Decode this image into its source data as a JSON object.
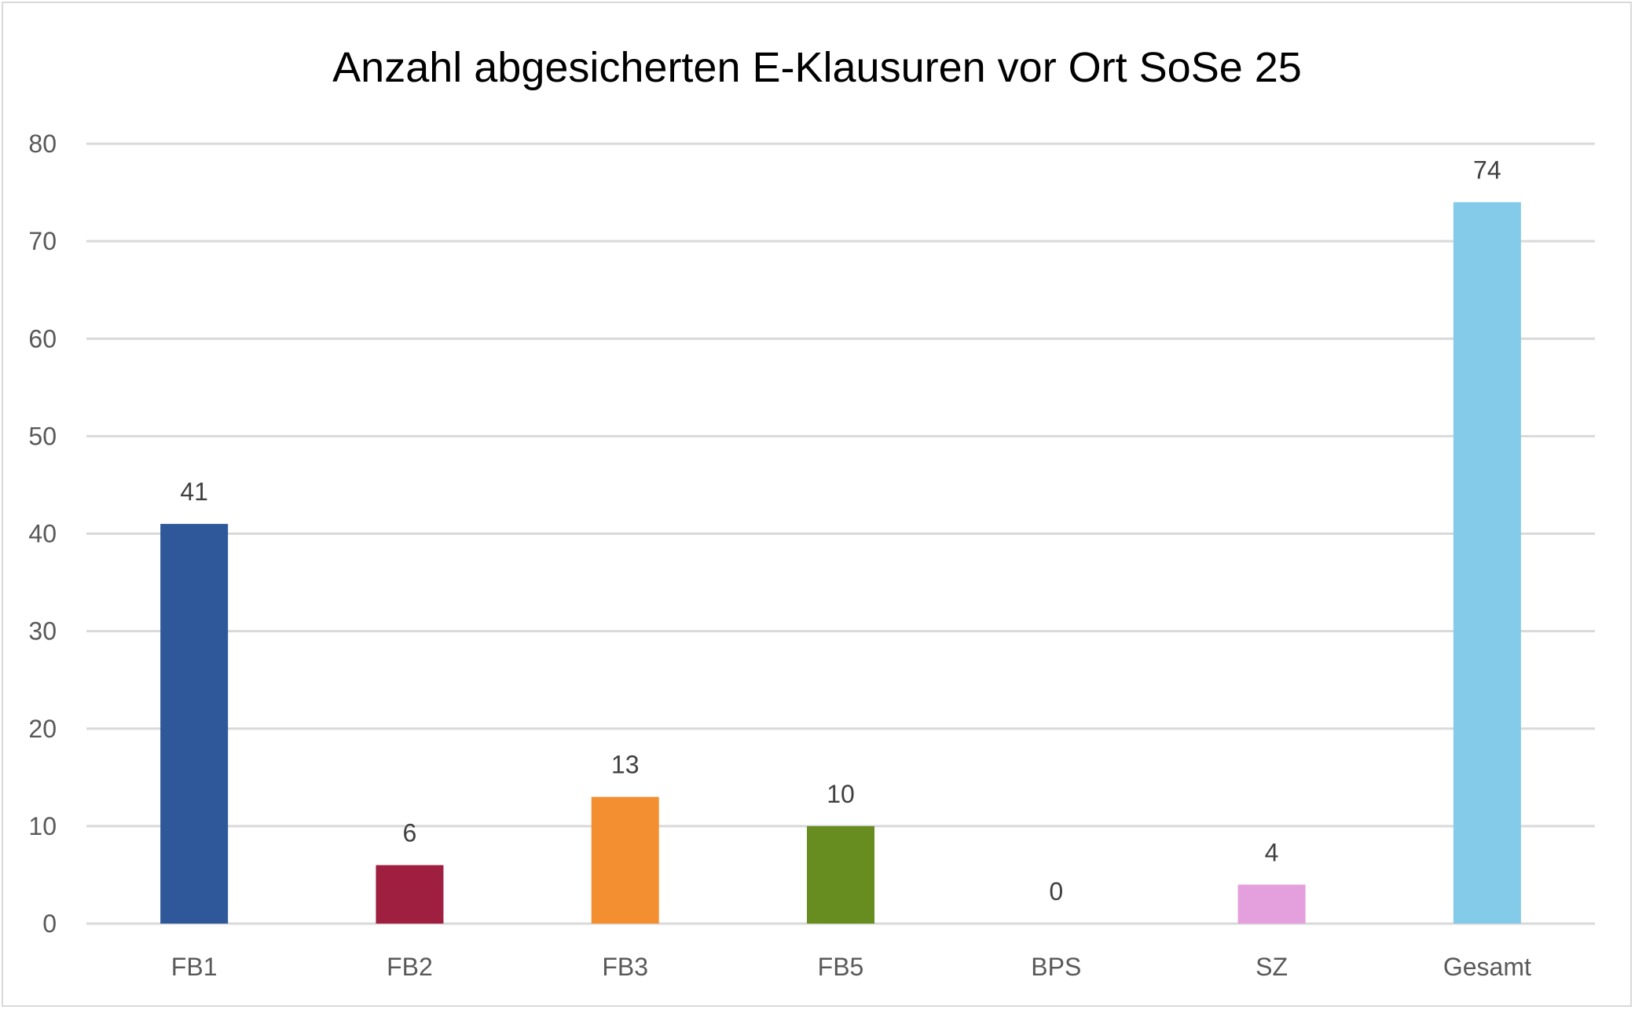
{
  "chart_data": {
    "type": "bar",
    "title": "Anzahl abgesicherten E-Klausuren vor Ort SoSe 25",
    "categories": [
      "FB1",
      "FB2",
      "FB3",
      "FB5",
      "BPS",
      "SZ",
      "Gesamt"
    ],
    "values": [
      41,
      6,
      13,
      10,
      0,
      4,
      74
    ],
    "colors": [
      "#2e5899",
      "#9e1f40",
      "#f48f31",
      "#678c1f",
      "#cccccc",
      "#e49fdd",
      "#84cbea"
    ],
    "data_labels": [
      "41",
      "6",
      "13",
      "10",
      "0",
      "4",
      "74"
    ],
    "yticks": [
      "0",
      "10",
      "20",
      "30",
      "40",
      "50",
      "60",
      "70",
      "80"
    ],
    "ylim": [
      0,
      80
    ],
    "xlabel": "",
    "ylabel": "",
    "grid": true,
    "legend": "none"
  }
}
